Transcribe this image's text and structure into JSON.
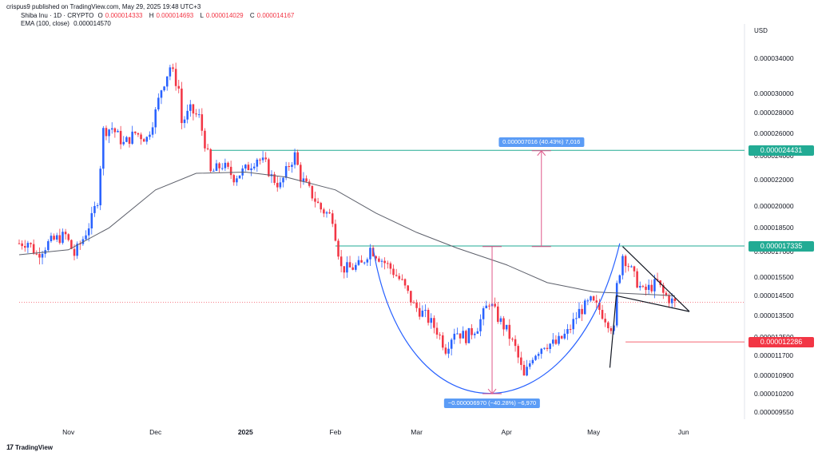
{
  "header": {
    "published": "crispus9 published on TradingView.com, May 29, 2025 19:48 UTC+3",
    "symbol": "Shiba Inu · 1D · CRYPTO",
    "o_label": "O",
    "o_value": "0.000014333",
    "h_label": "H",
    "h_value": "0.000014693",
    "l_label": "L",
    "l_value": "0.000014029",
    "c_label": "C",
    "c_value": "0.000014167",
    "ema_label": "EMA (100, close)",
    "ema_value": "0.000014570"
  },
  "axis": {
    "currency": "USD"
  },
  "tags": {
    "resistance": "0.000024431",
    "neckline": "0.000017335",
    "support": "0.000012286"
  },
  "measures": {
    "up": "0.000007016 (40.43%) 7,016",
    "down": "−0.000006970 (−40.28%) −6,970"
  },
  "branding": {
    "logo_text": "TradingView",
    "logo_mark": "17"
  },
  "colors": {
    "up": "#2962ff",
    "down": "#f23645",
    "ema": "#5d606b",
    "level": "#22ab94",
    "cup": "#2962ff",
    "measure": "#e0578a",
    "tag_green": "#22ab94",
    "tag_red": "#f23645"
  },
  "chart_data": {
    "type": "candlestick",
    "title": "Shiba Inu · 1D · CRYPTO",
    "y_scale": "log",
    "y_tick_labels": [
      "0.000034000",
      "0.000030000",
      "0.000028000",
      "0.000026000",
      "0.000024000",
      "0.000022000",
      "0.000020000",
      "0.000018500",
      "0.000017000",
      "0.000015500",
      "0.000014500",
      "0.000013500",
      "0.000012500",
      "0.000011700",
      "0.000010900",
      "0.000010200",
      "0.000009550"
    ],
    "y_ticks": [
      3.4e-05,
      3e-05,
      2.8e-05,
      2.6e-05,
      2.4e-05,
      2.2e-05,
      2e-05,
      1.85e-05,
      1.7e-05,
      1.55e-05,
      1.45e-05,
      1.35e-05,
      1.25e-05,
      1.17e-05,
      1.09e-05,
      1.02e-05,
      9.55e-06
    ],
    "x_tick_labels": [
      "Nov",
      "Dec",
      "2025",
      "Feb",
      "Mar",
      "Apr",
      "May",
      "Jun"
    ],
    "x_ticks": [
      "2024-11-01",
      "2024-12-01",
      "2025-01-01",
      "2025-02-01",
      "2025-03-01",
      "2025-04-01",
      "2025-05-01",
      "2025-06-01"
    ],
    "x_range": [
      "2024-10-15",
      "2025-06-22"
    ],
    "levels": {
      "resistance": 2.4431e-05,
      "neckline": 1.7335e-05,
      "support": 1.2286e-05,
      "last_close": 1.4167e-05
    },
    "close_path": [
      [
        "2024-10-15",
        1.75e-05
      ],
      [
        "2024-10-18",
        1.76e-05
      ],
      [
        "2024-10-21",
        1.68e-05
      ],
      [
        "2024-10-25",
        1.75e-05
      ],
      [
        "2024-10-28",
        1.78e-05
      ],
      [
        "2024-10-31",
        1.8e-05
      ],
      [
        "2024-11-03",
        1.68e-05
      ],
      [
        "2024-11-06",
        1.78e-05
      ],
      [
        "2024-11-09",
        1.91e-05
      ],
      [
        "2024-11-11",
        2.05e-05
      ],
      [
        "2024-11-13",
        2.62e-05
      ],
      [
        "2024-11-16",
        2.65e-05
      ],
      [
        "2024-11-20",
        2.5e-05
      ],
      [
        "2024-11-24",
        2.6e-05
      ],
      [
        "2024-11-28",
        2.55e-05
      ],
      [
        "2024-12-01",
        2.8e-05
      ],
      [
        "2024-12-03",
        3.05e-05
      ],
      [
        "2024-12-06",
        3.3e-05
      ],
      [
        "2024-12-09",
        3.05e-05
      ],
      [
        "2024-12-10",
        2.7e-05
      ],
      [
        "2024-12-13",
        2.82e-05
      ],
      [
        "2024-12-16",
        2.75e-05
      ],
      [
        "2024-12-19",
        2.4e-05
      ],
      [
        "2024-12-20",
        2.25e-05
      ],
      [
        "2024-12-24",
        2.32e-05
      ],
      [
        "2024-12-28",
        2.22e-05
      ],
      [
        "2025-01-01",
        2.28e-05
      ],
      [
        "2025-01-05",
        2.38e-05
      ],
      [
        "2025-01-08",
        2.32e-05
      ],
      [
        "2025-01-10",
        2.22e-05
      ],
      [
        "2025-01-13",
        2.15e-05
      ],
      [
        "2025-01-16",
        2.32e-05
      ],
      [
        "2025-01-18",
        2.4e-05
      ],
      [
        "2025-01-20",
        2.22e-05
      ],
      [
        "2025-01-24",
        2.08e-05
      ],
      [
        "2025-01-27",
        1.98e-05
      ],
      [
        "2025-01-31",
        1.92e-05
      ],
      [
        "2025-02-03",
        1.6e-05
      ],
      [
        "2025-02-06",
        1.6e-05
      ],
      [
        "2025-02-10",
        1.62e-05
      ],
      [
        "2025-02-13",
        1.72e-05
      ],
      [
        "2025-02-17",
        1.65e-05
      ],
      [
        "2025-02-20",
        1.6e-05
      ],
      [
        "2025-02-24",
        1.52e-05
      ],
      [
        "2025-02-28",
        1.4e-05
      ],
      [
        "2025-03-04",
        1.35e-05
      ],
      [
        "2025-03-08",
        1.28e-05
      ],
      [
        "2025-03-11",
        1.2e-05
      ],
      [
        "2025-03-14",
        1.28e-05
      ],
      [
        "2025-03-18",
        1.25e-05
      ],
      [
        "2025-03-22",
        1.3e-05
      ],
      [
        "2025-03-26",
        1.42e-05
      ],
      [
        "2025-03-29",
        1.34e-05
      ],
      [
        "2025-04-01",
        1.28e-05
      ],
      [
        "2025-04-04",
        1.2e-05
      ],
      [
        "2025-04-07",
        1.08e-05
      ],
      [
        "2025-04-10",
        1.17e-05
      ],
      [
        "2025-04-14",
        1.22e-05
      ],
      [
        "2025-04-18",
        1.22e-05
      ],
      [
        "2025-04-22",
        1.27e-05
      ],
      [
        "2025-04-26",
        1.37e-05
      ],
      [
        "2025-04-30",
        1.42e-05
      ],
      [
        "2025-05-03",
        1.38e-05
      ],
      [
        "2025-05-06",
        1.32e-05
      ],
      [
        "2025-05-08",
        1.28e-05
      ],
      [
        "2025-05-09",
        1.5e-05
      ],
      [
        "2025-05-11",
        1.68e-05
      ],
      [
        "2025-05-13",
        1.62e-05
      ],
      [
        "2025-05-15",
        1.55e-05
      ],
      [
        "2025-05-18",
        1.47e-05
      ],
      [
        "2025-05-21",
        1.5e-05
      ],
      [
        "2025-05-23",
        1.52e-05
      ],
      [
        "2025-05-25",
        1.46e-05
      ],
      [
        "2025-05-29",
        1.41e-05
      ]
    ],
    "ema_100": [
      [
        "2024-10-15",
        1.68e-05
      ],
      [
        "2024-11-01",
        1.71e-05
      ],
      [
        "2024-11-15",
        1.85e-05
      ],
      [
        "2024-12-01",
        2.12e-05
      ],
      [
        "2024-12-15",
        2.25e-05
      ],
      [
        "2025-01-01",
        2.26e-05
      ],
      [
        "2025-01-15",
        2.22e-05
      ],
      [
        "2025-02-01",
        2.12e-05
      ],
      [
        "2025-02-15",
        1.95e-05
      ],
      [
        "2025-03-01",
        1.82e-05
      ],
      [
        "2025-03-15",
        1.72e-05
      ],
      [
        "2025-04-01",
        1.62e-05
      ],
      [
        "2025-04-15",
        1.52e-05
      ],
      [
        "2025-05-01",
        1.47e-05
      ],
      [
        "2025-05-15",
        1.46e-05
      ],
      [
        "2025-05-29",
        1.45e-05
      ]
    ],
    "annotations": [
      {
        "type": "measure",
        "label": "0.000007016 (40.43%) 7,016",
        "date": "2025-04-13",
        "from": 1.73e-05,
        "to": 2.44e-05
      },
      {
        "type": "measure",
        "label": "−0.000006970 (−40.28%) −6,970",
        "date": "2025-03-27",
        "from": 1.73e-05,
        "to": 1.02e-05
      },
      {
        "type": "cup",
        "from_date": "2025-02-14",
        "to_date": "2025-05-10"
      },
      {
        "type": "pennant",
        "from_date": "2025-05-11",
        "to_date": "2025-06-03"
      }
    ]
  }
}
